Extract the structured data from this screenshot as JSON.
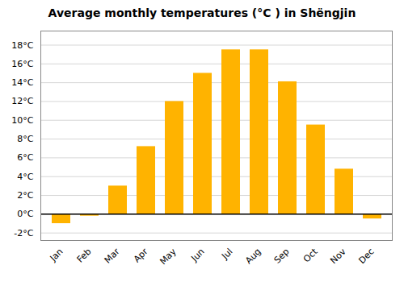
{
  "chart_data": {
    "type": "bar",
    "title": "Average monthly temperatures (°C ) in Shëngjin",
    "categories": [
      "Jan",
      "Feb",
      "Mar",
      "Apr",
      "May",
      "Jun",
      "Jul",
      "Aug",
      "Sep",
      "Oct",
      "Nov",
      "Dec"
    ],
    "values": [
      -1.0,
      -0.2,
      3.0,
      7.2,
      12.0,
      15.0,
      17.5,
      17.5,
      14.1,
      9.5,
      4.8,
      -0.5
    ],
    "color": "#FFB300",
    "ylim": [
      -2.8,
      19.5
    ],
    "yticks": [
      {
        "value": -2,
        "label": "-2°C"
      },
      {
        "value": 0,
        "label": "0°C"
      },
      {
        "value": 2,
        "label": "2°C"
      },
      {
        "value": 4,
        "label": "4°C"
      },
      {
        "value": 6,
        "label": "6°C"
      },
      {
        "value": 8,
        "label": "8°C"
      },
      {
        "value": 10,
        "label": "10°C"
      },
      {
        "value": 12,
        "label": "12°C"
      },
      {
        "value": 14,
        "label": "14°C"
      },
      {
        "value": 16,
        "label": "16°C"
      },
      {
        "value": 18,
        "label": "18°C"
      }
    ],
    "grid": true
  }
}
